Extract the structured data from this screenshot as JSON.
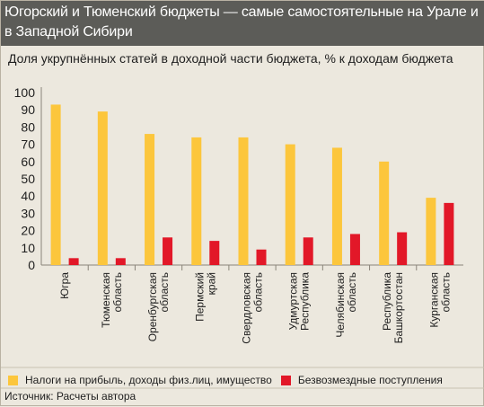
{
  "header": {
    "title": "Югорский и Тюменский бюджеты — самые самостоятельные на Урале и в Западной Сибири"
  },
  "chart_data": {
    "type": "bar",
    "title": "Доля укрупнённых статей в доходной части бюджета, % к  доходам бюджета",
    "categories": [
      [
        "Югра"
      ],
      [
        "Тюменская",
        "область"
      ],
      [
        "Оренбургская",
        "область"
      ],
      [
        "Пермский",
        "край"
      ],
      [
        "Свердловская",
        "область"
      ],
      [
        "Удмуртская",
        "Республика"
      ],
      [
        "Челябинская",
        "область"
      ],
      [
        "Республика",
        "Башкортостан"
      ],
      [
        "Курганская",
        "область"
      ]
    ],
    "series": [
      {
        "name": "Налоги на прибыль, доходы физ.лиц, имущество",
        "color": "#fcc63c",
        "values": [
          93,
          89,
          76,
          74,
          74,
          70,
          68,
          60,
          39
        ]
      },
      {
        "name": "Безвозмездные поступления",
        "color": "#e21828",
        "values": [
          4,
          4,
          16,
          14,
          9,
          16,
          18,
          19,
          36
        ]
      }
    ],
    "ylim": [
      0,
      100
    ],
    "yticks": [
      0,
      10,
      20,
      30,
      40,
      50,
      60,
      70,
      80,
      90,
      100
    ],
    "grid": false,
    "legend_position": "bottom"
  },
  "footer": {
    "source": "Источник: Расчеты автора"
  }
}
